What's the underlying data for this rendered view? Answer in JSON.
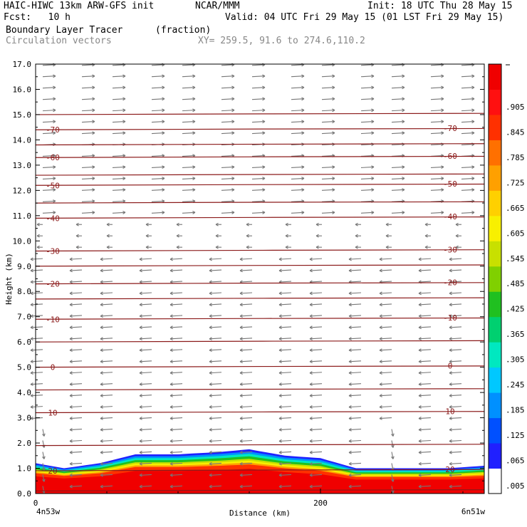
{
  "header": {
    "title": "HAIC-HIWC 13km ARW-GFS init",
    "org": "NCAR/MMM",
    "init": "Init: 18 UTC Thu 28 May 15",
    "fcst": "Fcst:   10 h",
    "valid": "Valid: 04 UTC Fri 29 May 15 (01 LST Fri 29 May 15)",
    "field": "Boundary Layer Tracer",
    "field_units": "(fraction)",
    "vectors": "Circulation vectors",
    "xy": "XY= 259.5, 91.6 to 274.6,110.2"
  },
  "chart_data": {
    "type": "heatmap",
    "xlabel": "Distance (km)",
    "ylabel": "Height (km)",
    "xlim": [
      0,
      315
    ],
    "ylim": [
      0.0,
      17.0
    ],
    "x_ticks": [
      0,
      200
    ],
    "x_tick_labels": [
      "0",
      "200"
    ],
    "x_left_label": "4n53w",
    "x_right_label": "6n51w",
    "y_ticks": [
      "0.0",
      "1.0",
      "2.0",
      "3.0",
      "4.0",
      "5.0",
      "6.0",
      "7.0",
      "8.0",
      "9.0",
      "10.0",
      "11.0",
      "12.0",
      "13.0",
      "14.0",
      "15.0",
      "16.0",
      "17.0"
    ],
    "colorbar": {
      "labels": [
        ".005",
        ".065",
        ".125",
        ".185",
        ".245",
        ".305",
        ".365",
        ".425",
        ".485",
        ".545",
        ".605",
        ".665",
        ".725",
        ".785",
        ".845",
        ".905"
      ],
      "colors": [
        "#ffffff",
        "#2020ff",
        "#0050ff",
        "#0090ff",
        "#00c8ff",
        "#00e8c0",
        "#00d070",
        "#20c020",
        "#80d000",
        "#c8e000",
        "#f8f000",
        "#ffd000",
        "#ffa000",
        "#ff7000",
        "#ff3000",
        "#ff1010",
        "#f00000"
      ],
      "min": 0.005,
      "max": 1.0
    },
    "temperature_contours": [
      {
        "label": "20",
        "y": 0.9
      },
      {
        "label": "10",
        "y": 3.2
      },
      {
        "label": "0",
        "y": 5.0
      },
      {
        "label": "-10",
        "y": 6.9
      },
      {
        "label": "-20",
        "y": 8.3
      },
      {
        "label": "-30",
        "y": 9.6
      },
      {
        "label": "-40",
        "y": 10.9
      },
      {
        "label": "-50",
        "y": 12.2
      },
      {
        "label": "-60",
        "y": 13.3
      },
      {
        "label": "-70",
        "y": 14.4
      }
    ],
    "unlabeled_contours_y": [
      0.1,
      1.9,
      4.1,
      6.0,
      7.7,
      9.0,
      11.5,
      12.6,
      13.8,
      15.0
    ],
    "tracer_top_km": [
      {
        "x": 0,
        "top": 1.2
      },
      {
        "x": 20,
        "top": 1.0
      },
      {
        "x": 45,
        "top": 1.2
      },
      {
        "x": 70,
        "top": 1.55
      },
      {
        "x": 100,
        "top": 1.55
      },
      {
        "x": 130,
        "top": 1.65
      },
      {
        "x": 150,
        "top": 1.75
      },
      {
        "x": 175,
        "top": 1.5
      },
      {
        "x": 200,
        "top": 1.4
      },
      {
        "x": 225,
        "top": 1.0
      },
      {
        "x": 260,
        "top": 1.0
      },
      {
        "x": 290,
        "top": 1.0
      },
      {
        "x": 315,
        "top": 1.1
      }
    ],
    "tracer_red_top_km": [
      {
        "x": 0,
        "top": 0.8
      },
      {
        "x": 20,
        "top": 0.7
      },
      {
        "x": 45,
        "top": 0.8
      },
      {
        "x": 70,
        "top": 1.05
      },
      {
        "x": 100,
        "top": 1.05
      },
      {
        "x": 130,
        "top": 1.1
      },
      {
        "x": 150,
        "top": 1.15
      },
      {
        "x": 175,
        "top": 1.0
      },
      {
        "x": 200,
        "top": 0.9
      },
      {
        "x": 225,
        "top": 0.65
      },
      {
        "x": 260,
        "top": 0.65
      },
      {
        "x": 290,
        "top": 0.65
      },
      {
        "x": 315,
        "top": 0.7
      }
    ],
    "vectors": {
      "upper_direction": "east",
      "lower_direction": "west",
      "switch_height_km": 11.0
    }
  }
}
